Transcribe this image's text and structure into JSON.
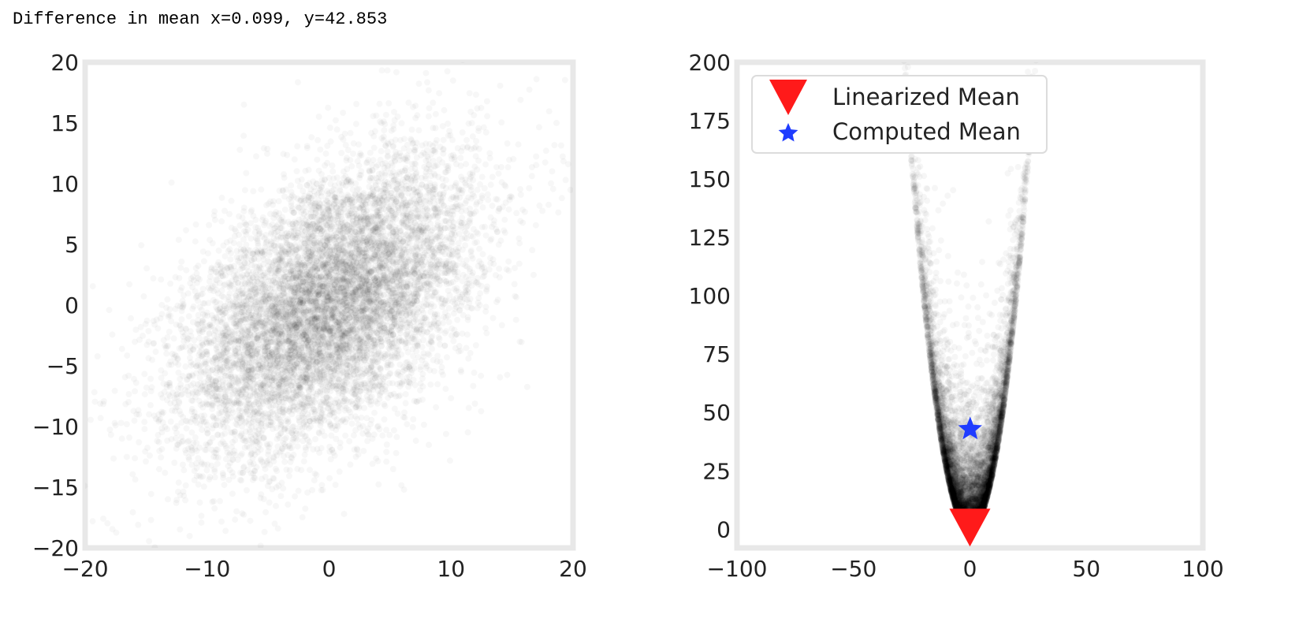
{
  "output": {
    "text": "Difference in mean x=0.099, y=42.853"
  },
  "colors": {
    "frame": "#e8e8e8",
    "points": "#000000",
    "linearized_marker": "#ff1a1a",
    "computed_marker": "#1f3cff"
  },
  "chart_data": [
    {
      "type": "scatter",
      "title": "",
      "xlabel": "",
      "ylabel": "",
      "xlim": [
        -20,
        20
      ],
      "ylim": [
        -20,
        20
      ],
      "xticks": [
        -20,
        -10,
        0,
        10,
        20
      ],
      "yticks": [
        -20,
        -15,
        -10,
        -5,
        0,
        5,
        10,
        15,
        20
      ],
      "xtick_labels": [
        "−20",
        "−10",
        "0",
        "10",
        "20"
      ],
      "ytick_labels": [
        "−20",
        "−15",
        "−10",
        "−5",
        "0",
        "5",
        "10",
        "15",
        "20"
      ],
      "grid": false,
      "distribution": {
        "kind": "bivariate-normal",
        "mean": [
          0,
          0
        ],
        "std": [
          6,
          6
        ],
        "correlation": 0.5
      }
    },
    {
      "type": "scatter",
      "title": "",
      "xlabel": "",
      "ylabel": "",
      "xlim": [
        -100,
        100
      ],
      "ylim": [
        -8,
        200
      ],
      "xticks": [
        -100,
        -50,
        0,
        50,
        100
      ],
      "yticks": [
        0,
        25,
        50,
        75,
        100,
        125,
        150,
        175,
        200
      ],
      "xtick_labels": [
        "−100",
        "−50",
        "0",
        "50",
        "100"
      ],
      "ytick_labels": [
        "0",
        "25",
        "50",
        "75",
        "100",
        "125",
        "150",
        "175",
        "200"
      ],
      "grid": false,
      "legend": {
        "placement": "top-left"
      },
      "distribution": {
        "kind": "transformed",
        "description_of_transform": "parabolic spread of the left sample"
      },
      "series": [
        {
          "name": "Linearized Mean",
          "marker": "triangle-down",
          "x": [
            0
          ],
          "y": [
            0
          ]
        },
        {
          "name": "Computed Mean",
          "marker": "star",
          "x": [
            0.099
          ],
          "y": [
            42.853
          ]
        }
      ]
    }
  ]
}
